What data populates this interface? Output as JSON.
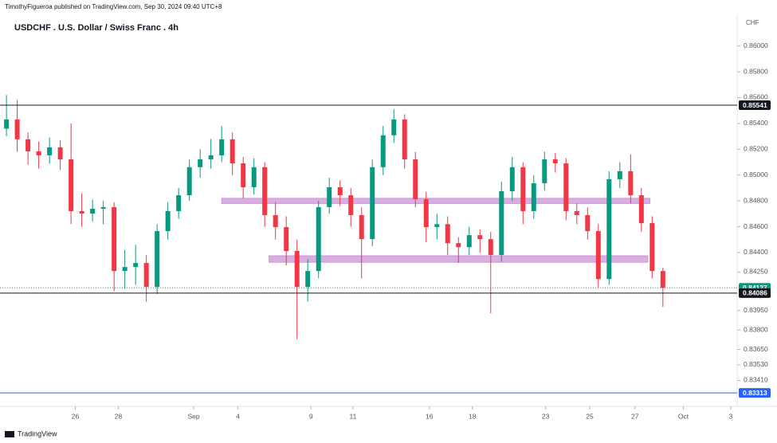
{
  "chart_data": {
    "type": "candlestick",
    "header": "TimothyFigueroa published on TradingView.com, Sep 30, 2024 09:40 UTC+8",
    "title": "USDCHF . U.S. Dollar / Swiss Franc . 4h",
    "currency": "CHF",
    "footer": "TradingView",
    "up_color": "#089981",
    "down_color": "#f23645",
    "ohlc": {
      "open": [
        0.8536,
        0.85431,
        0.85277,
        0.85184,
        0.85153,
        0.85215,
        0.85122,
        0.84721,
        0.84702,
        0.84739,
        0.84752,
        0.84257,
        0.84288,
        0.84319,
        0.84134,
        0.84566,
        0.84721,
        0.84844,
        0.85061,
        0.85122,
        0.85153,
        0.85277,
        0.85091,
        0.84906,
        0.85061,
        0.8469,
        0.84597,
        0.84412,
        0.84134,
        0.84257,
        0.84752,
        0.84906,
        0.84844,
        0.8469,
        0.84504,
        0.85061,
        0.85308,
        0.85431,
        0.85122,
        0.84813,
        0.84597,
        0.8462,
        0.84473,
        0.84442,
        0.84535,
        0.84504,
        0.84381,
        0.84875,
        0.85061,
        0.84721,
        0.84937,
        0.85122,
        0.85091,
        0.84721,
        0.8469,
        0.84566,
        0.84195,
        0.84968,
        0.8503,
        0.84844,
        0.84628,
        0.84257
      ],
      "high": [
        0.8562,
        0.8558,
        0.8533,
        0.8526,
        0.8529,
        0.8527,
        0.854,
        0.8486,
        0.8481,
        0.848,
        0.8479,
        0.8442,
        0.8446,
        0.8438,
        0.8462,
        0.8479,
        0.849,
        0.8512,
        0.852,
        0.8528,
        0.8538,
        0.8533,
        0.8514,
        0.8513,
        0.851,
        0.8479,
        0.8468,
        0.845,
        0.8435,
        0.848,
        0.8498,
        0.8496,
        0.849,
        0.8475,
        0.8512,
        0.8538,
        0.8551,
        0.8547,
        0.8518,
        0.8487,
        0.847,
        0.8468,
        0.8452,
        0.846,
        0.8458,
        0.8456,
        0.8495,
        0.8514,
        0.851,
        0.85,
        0.8518,
        0.8517,
        0.8513,
        0.8478,
        0.8475,
        0.8462,
        0.8503,
        0.851,
        0.8516,
        0.849,
        0.8468,
        0.8428
      ],
      "low": [
        0.853,
        0.8518,
        0.8508,
        0.8505,
        0.8509,
        0.8504,
        0.8462,
        0.846,
        0.8464,
        0.8462,
        0.841,
        0.8412,
        0.8415,
        0.8402,
        0.8408,
        0.845,
        0.8466,
        0.848,
        0.8498,
        0.8505,
        0.851,
        0.85,
        0.8482,
        0.8485,
        0.846,
        0.845,
        0.843,
        0.8373,
        0.8402,
        0.842,
        0.847,
        0.8476,
        0.846,
        0.842,
        0.8445,
        0.85,
        0.8525,
        0.8505,
        0.8475,
        0.8448,
        0.845,
        0.8438,
        0.8432,
        0.8438,
        0.844,
        0.8393,
        0.8433,
        0.848,
        0.8462,
        0.8466,
        0.8488,
        0.8502,
        0.8465,
        0.8462,
        0.845,
        0.8413,
        0.8415,
        0.849,
        0.8478,
        0.8456,
        0.842,
        0.8398
      ],
      "close": [
        0.85431,
        0.85277,
        0.85184,
        0.85153,
        0.85215,
        0.85122,
        0.84721,
        0.84702,
        0.84739,
        0.84752,
        0.84257,
        0.84288,
        0.84319,
        0.84134,
        0.84566,
        0.84721,
        0.84844,
        0.85061,
        0.85122,
        0.85153,
        0.85277,
        0.85091,
        0.84906,
        0.85061,
        0.8469,
        0.84597,
        0.84412,
        0.84134,
        0.84257,
        0.84752,
        0.84906,
        0.84844,
        0.8469,
        0.84504,
        0.85061,
        0.85308,
        0.85431,
        0.85122,
        0.84813,
        0.84597,
        0.8462,
        0.84473,
        0.84442,
        0.84535,
        0.84504,
        0.84381,
        0.84875,
        0.85061,
        0.84721,
        0.84937,
        0.85122,
        0.85091,
        0.84721,
        0.8469,
        0.84566,
        0.84195,
        0.84968,
        0.8503,
        0.84844,
        0.84628,
        0.84257,
        0.84127
      ]
    },
    "xlim": [
      -0.6,
      67.9
    ],
    "xticks": [
      {
        "value": 6.4,
        "label": "26"
      },
      {
        "value": 10.4,
        "label": "28"
      },
      {
        "value": 17.4,
        "label": "Sep"
      },
      {
        "value": 21.5,
        "label": "4"
      },
      {
        "value": 28.3,
        "label": "9"
      },
      {
        "value": 32.2,
        "label": "11"
      },
      {
        "value": 39.3,
        "label": "16"
      },
      {
        "value": 43.3,
        "label": "18"
      },
      {
        "value": 50.1,
        "label": "23"
      },
      {
        "value": 54.2,
        "label": "25"
      },
      {
        "value": 58.4,
        "label": "27"
      },
      {
        "value": 62.9,
        "label": "Oct"
      },
      {
        "value": 67.3,
        "label": "3"
      }
    ],
    "ylim": [
      0.8324,
      0.8622
    ],
    "yticks": [
      {
        "value": 0.86,
        "label": "0.86000"
      },
      {
        "value": 0.858,
        "label": "0.85800"
      },
      {
        "value": 0.856,
        "label": "0.85600"
      },
      {
        "value": 0.854,
        "label": "0.85400"
      },
      {
        "value": 0.852,
        "label": "0.85200"
      },
      {
        "value": 0.85,
        "label": "0.85000"
      },
      {
        "value": 0.848,
        "label": "0.84800"
      },
      {
        "value": 0.846,
        "label": "0.84600"
      },
      {
        "value": 0.844,
        "label": "0.84400"
      },
      {
        "value": 0.8425,
        "label": "0.84250"
      },
      {
        "value": 0.8395,
        "label": "0.83950"
      },
      {
        "value": 0.838,
        "label": "0.83800"
      },
      {
        "value": 0.8365,
        "label": "0.83650"
      },
      {
        "value": 0.8353,
        "label": "0.83530"
      },
      {
        "value": 0.8341,
        "label": "0.83410"
      }
    ],
    "price_lines": [
      {
        "value": 0.85541,
        "color": "#131722",
        "style": "solid"
      },
      {
        "value": 0.84127,
        "color": "#089981",
        "style": "dotted"
      },
      {
        "value": 0.84086,
        "color": "#131722",
        "style": "solid"
      },
      {
        "value": 0.83313,
        "color": "#2962ff",
        "style": "solid"
      }
    ],
    "zones": [
      {
        "from": 0.8478,
        "to": 0.8482,
        "start": 20,
        "end": 59.8,
        "color": "#ce93d8"
      },
      {
        "from": 0.84325,
        "to": 0.84375,
        "start": 24.4,
        "end": 59.6,
        "color": "#ce93d8"
      }
    ]
  }
}
